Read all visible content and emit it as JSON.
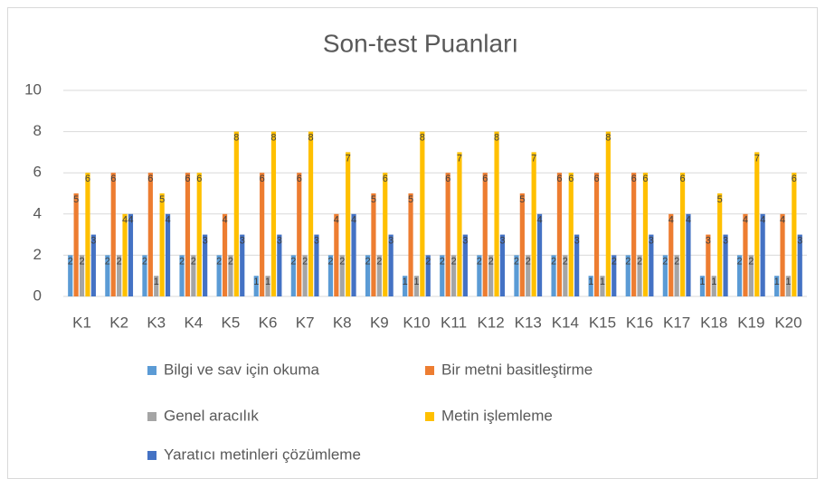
{
  "chart_data": {
    "type": "bar",
    "title": "Son-test Puanları",
    "categories": [
      "K1",
      "K2",
      "K3",
      "K4",
      "K5",
      "K6",
      "K7",
      "K8",
      "K9",
      "K10",
      "K11",
      "K12",
      "K13",
      "K14",
      "K15",
      "K16",
      "K17",
      "K18",
      "K19",
      "K20"
    ],
    "series": [
      {
        "name": "Bilgi ve sav için okuma",
        "color": "#5b9bd5",
        "values": [
          2,
          2,
          2,
          2,
          2,
          1,
          2,
          2,
          2,
          1,
          2,
          2,
          2,
          2,
          1,
          2,
          2,
          1,
          2,
          1
        ]
      },
      {
        "name": "Bir metni basitleştirme",
        "color": "#ed7d31",
        "values": [
          5,
          6,
          6,
          6,
          4,
          6,
          6,
          4,
          5,
          5,
          6,
          6,
          5,
          6,
          6,
          6,
          4,
          3,
          4,
          4
        ]
      },
      {
        "name": "Genel aracılık",
        "color": "#a5a5a5",
        "values": [
          2,
          2,
          1,
          2,
          2,
          1,
          2,
          2,
          2,
          1,
          2,
          2,
          2,
          2,
          1,
          2,
          2,
          1,
          2,
          1
        ]
      },
      {
        "name": "Metin işlemleme",
        "color": "#ffc000",
        "values": [
          6,
          4,
          5,
          6,
          8,
          8,
          8,
          7,
          6,
          8,
          7,
          8,
          7,
          6,
          8,
          6,
          6,
          5,
          7,
          6
        ]
      },
      {
        "name": "Yaratıcı metinleri çözümleme",
        "color": "#4472c4",
        "values": [
          3,
          4,
          4,
          3,
          3,
          3,
          3,
          4,
          3,
          2,
          3,
          3,
          4,
          3,
          2,
          3,
          4,
          3,
          4,
          3
        ]
      }
    ],
    "ylim": [
      0,
      10
    ],
    "yticks": [
      0,
      2,
      4,
      6,
      8,
      10
    ],
    "grid": true,
    "legend": "bottom",
    "data_labels": true
  }
}
